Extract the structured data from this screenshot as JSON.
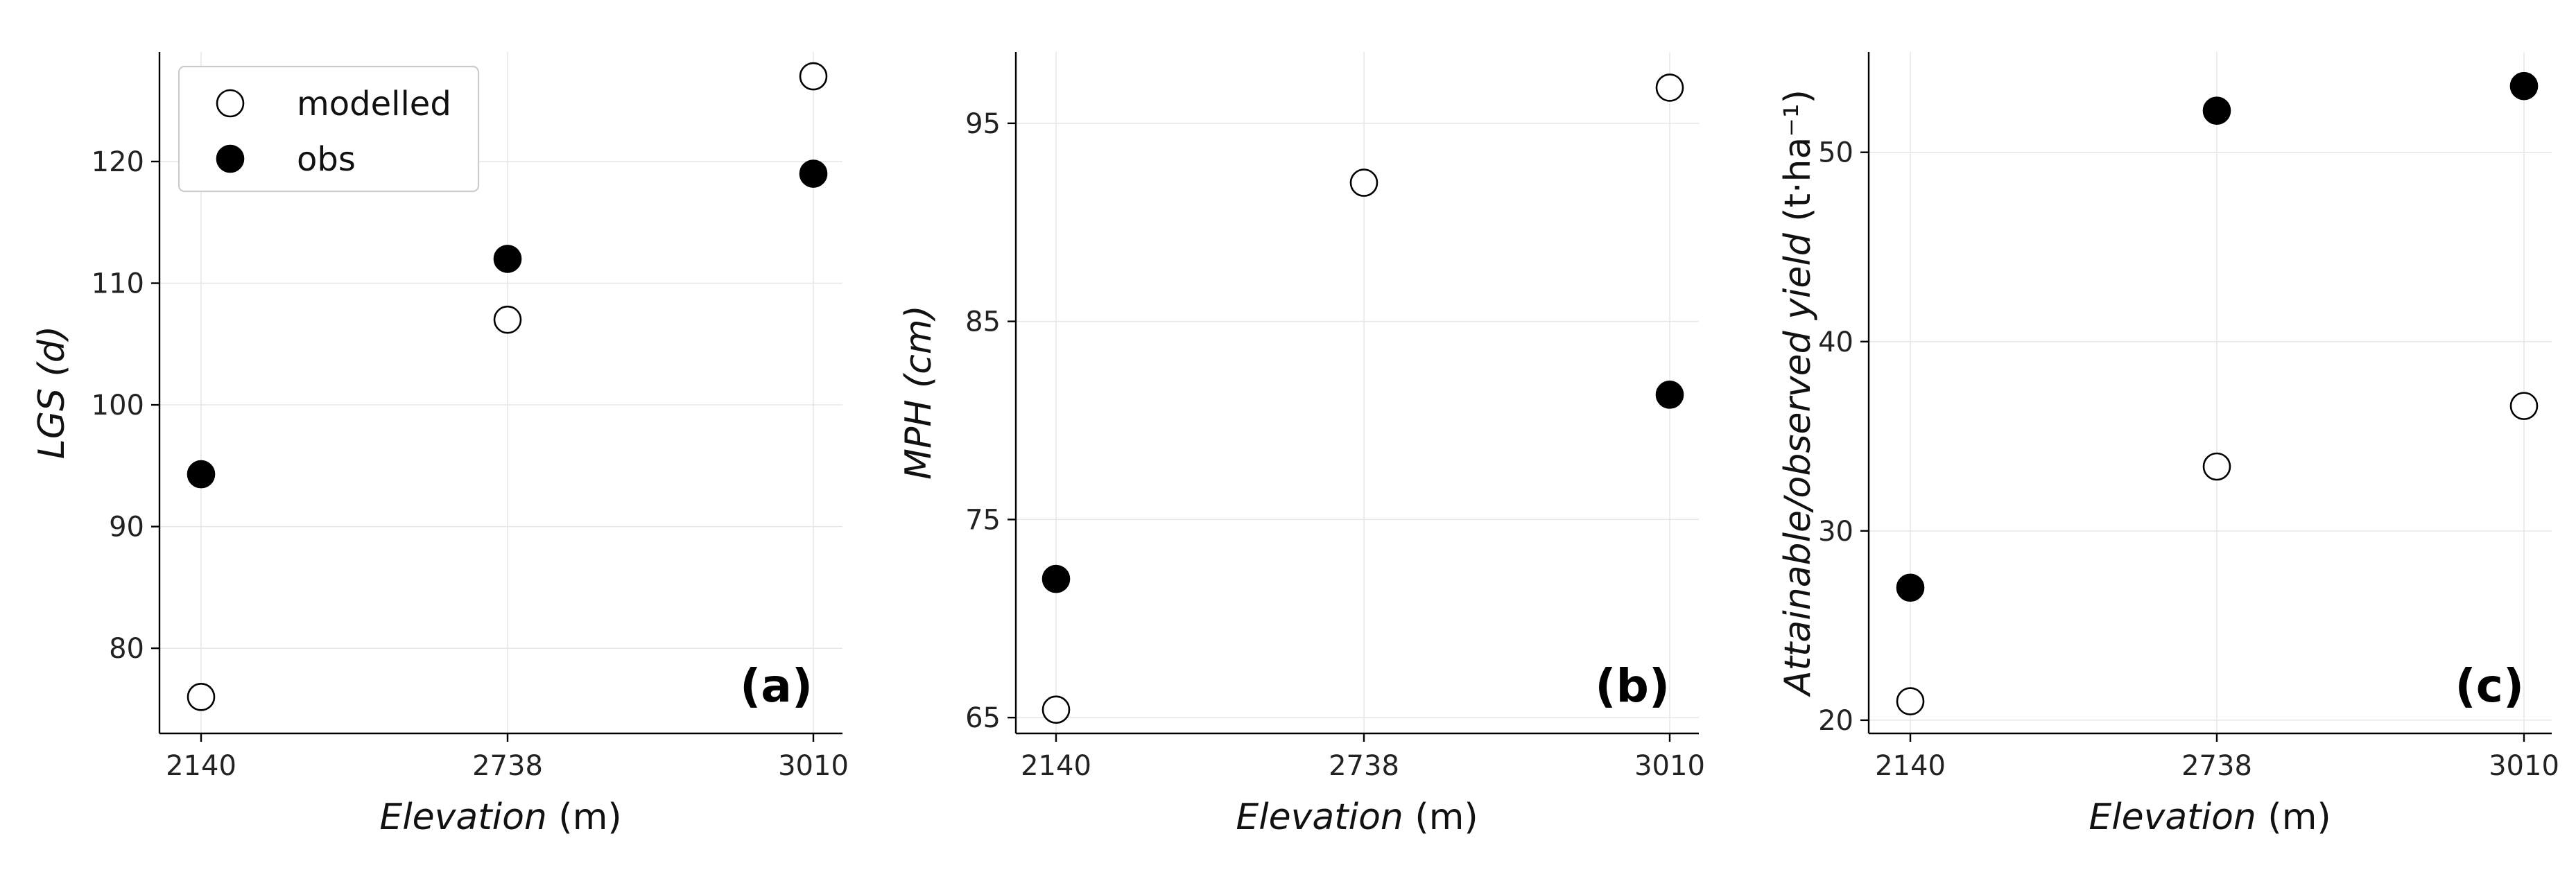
{
  "chart_data": [
    {
      "type": "scatter",
      "panel_label": "(a)",
      "xlabel": {
        "main": "Elevation",
        "unit": "(m)"
      },
      "ylabel": {
        "main": "LGS",
        "unit": "(d)"
      },
      "categories": [
        "2140",
        "2738",
        "3010"
      ],
      "ylim": [
        73,
        129
      ],
      "yticks": [
        80,
        90,
        100,
        110,
        120
      ],
      "grid": true,
      "legend": {
        "placement": "upper-left",
        "entries": [
          "modelled",
          "obs"
        ]
      },
      "series": [
        {
          "name": "modelled",
          "values": [
            76,
            107,
            127
          ],
          "marker": "open-circle"
        },
        {
          "name": "obs",
          "values": [
            94.3,
            112,
            119
          ],
          "marker": "filled-circle"
        }
      ]
    },
    {
      "type": "scatter",
      "panel_label": "(b)",
      "xlabel": {
        "main": "Elevation",
        "unit": "(m)"
      },
      "ylabel": {
        "main": "MPH",
        "unit": "(cm)"
      },
      "categories": [
        "2140",
        "2738",
        "3010"
      ],
      "ylim": [
        64.2,
        98.6
      ],
      "yticks": [
        65,
        75,
        85,
        95
      ],
      "grid": true,
      "series": [
        {
          "name": "modelled",
          "values": [
            65.4,
            92,
            96.8
          ],
          "marker": "open-circle"
        },
        {
          "name": "obs",
          "values": [
            72,
            null,
            81.3
          ],
          "marker": "filled-circle"
        }
      ]
    },
    {
      "type": "scatter",
      "panel_label": "(c)",
      "xlabel": {
        "main": "Elevation",
        "unit": "(m)"
      },
      "ylabel": {
        "main": "Attainable/observed yield",
        "unit": "(t·ha⁻¹)"
      },
      "categories": [
        "2140",
        "2738",
        "3010"
      ],
      "ylim": [
        19.3,
        55.3
      ],
      "yticks": [
        20,
        30,
        40,
        50
      ],
      "grid": true,
      "series": [
        {
          "name": "modelled",
          "values": [
            21,
            33.4,
            36.6
          ],
          "marker": "open-circle"
        },
        {
          "name": "obs",
          "values": [
            27,
            52.2,
            53.5
          ],
          "marker": "filled-circle"
        }
      ]
    }
  ]
}
